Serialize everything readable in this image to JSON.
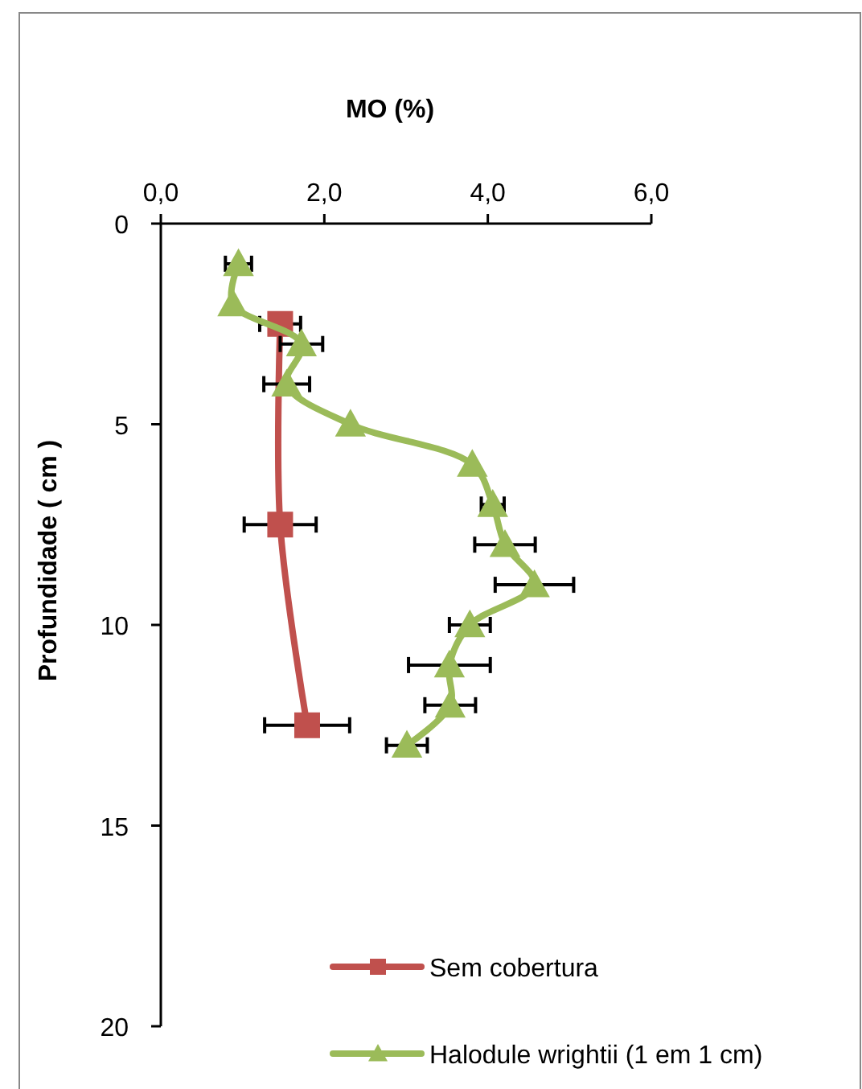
{
  "chart_data": {
    "type": "line",
    "xlabel": "MO (%)",
    "ylabel": "Profundidade ( cm )",
    "xlim": [
      0,
      6
    ],
    "xticks": [
      {
        "value": 0,
        "label": "0,0"
      },
      {
        "value": 2,
        "label": "2,0"
      },
      {
        "value": 4,
        "label": "4,0"
      },
      {
        "value": 6,
        "label": "6,0"
      }
    ],
    "ylim": [
      20,
      0
    ],
    "yticks": [
      0,
      5,
      10,
      15,
      20
    ],
    "grid": false,
    "legend": "bottom right",
    "series": [
      {
        "name": "Sem cobertura",
        "color": "#c0504d",
        "marker": "square",
        "x": [
          1.46,
          1.46,
          1.79
        ],
        "values": [
          2.5,
          7.5,
          12.5
        ],
        "xerrors": [
          0.25,
          0.44,
          0.52
        ]
      },
      {
        "name": "Halodule wrightii (1 em 1 cm)",
        "color": "#9bbb59",
        "marker": "triangle",
        "x": [
          0.95,
          0.88,
          1.72,
          1.54,
          2.32,
          3.81,
          4.06,
          4.21,
          4.57,
          3.78,
          3.53,
          3.54,
          3.01
        ],
        "values": [
          1,
          2,
          3,
          4,
          5,
          6,
          7,
          8,
          9,
          10,
          11,
          12,
          13
        ],
        "xerrors": [
          0.16,
          null,
          0.26,
          0.28,
          null,
          null,
          0.14,
          0.37,
          0.48,
          0.25,
          0.5,
          0.31,
          0.25
        ]
      }
    ]
  }
}
